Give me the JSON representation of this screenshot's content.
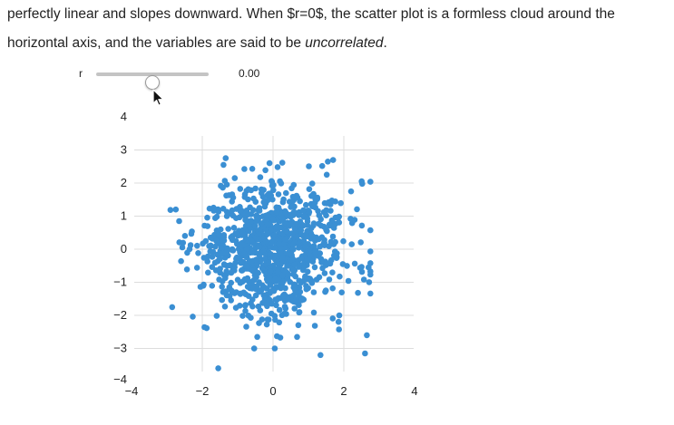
{
  "paragraph": {
    "line1": "perfectly linear and slopes downward. When $r=0$, the scatter plot is a formless cloud around the",
    "line2_prefix": "horizontal axis, and the variables are said to be ",
    "line2_emphasis": "uncorrelated",
    "line2_suffix": "."
  },
  "slider": {
    "label": "r",
    "value": 0.0,
    "value_text": "0.00",
    "min": -1,
    "max": 1
  },
  "colors": {
    "point": "#3a8fd3",
    "grid": "#dcdcdc",
    "track": "#c4c4c4",
    "text": "#222222"
  },
  "cursor": {
    "icon": "arrow-pointer-icon"
  },
  "chart_data": {
    "type": "scatter",
    "title": "",
    "xlabel": "",
    "ylabel": "",
    "xlim": [
      -4,
      4
    ],
    "ylim": [
      -4,
      4
    ],
    "xticks": [
      "−4",
      "−2",
      "0",
      "2",
      "4"
    ],
    "yticks": [
      "4",
      "3",
      "2",
      "1",
      "0",
      "−1",
      "−2",
      "−3",
      "−4"
    ],
    "grid": true,
    "correlation": 0.0,
    "n_points": 1000,
    "outliers": [
      {
        "x": -2.85,
        "y": -1.75
      },
      {
        "x": -2.75,
        "y": 1.2
      },
      {
        "x": -1.55,
        "y": -3.6
      },
      {
        "x": 0.05,
        "y": -3.0
      },
      {
        "x": 2.6,
        "y": -3.15
      },
      {
        "x": 2.65,
        "y": -2.6
      },
      {
        "x": 2.7,
        "y": -0.55
      },
      {
        "x": 1.55,
        "y": 2.65
      },
      {
        "x": -1.4,
        "y": 2.55
      },
      {
        "x": -0.1,
        "y": 2.6
      }
    ]
  }
}
